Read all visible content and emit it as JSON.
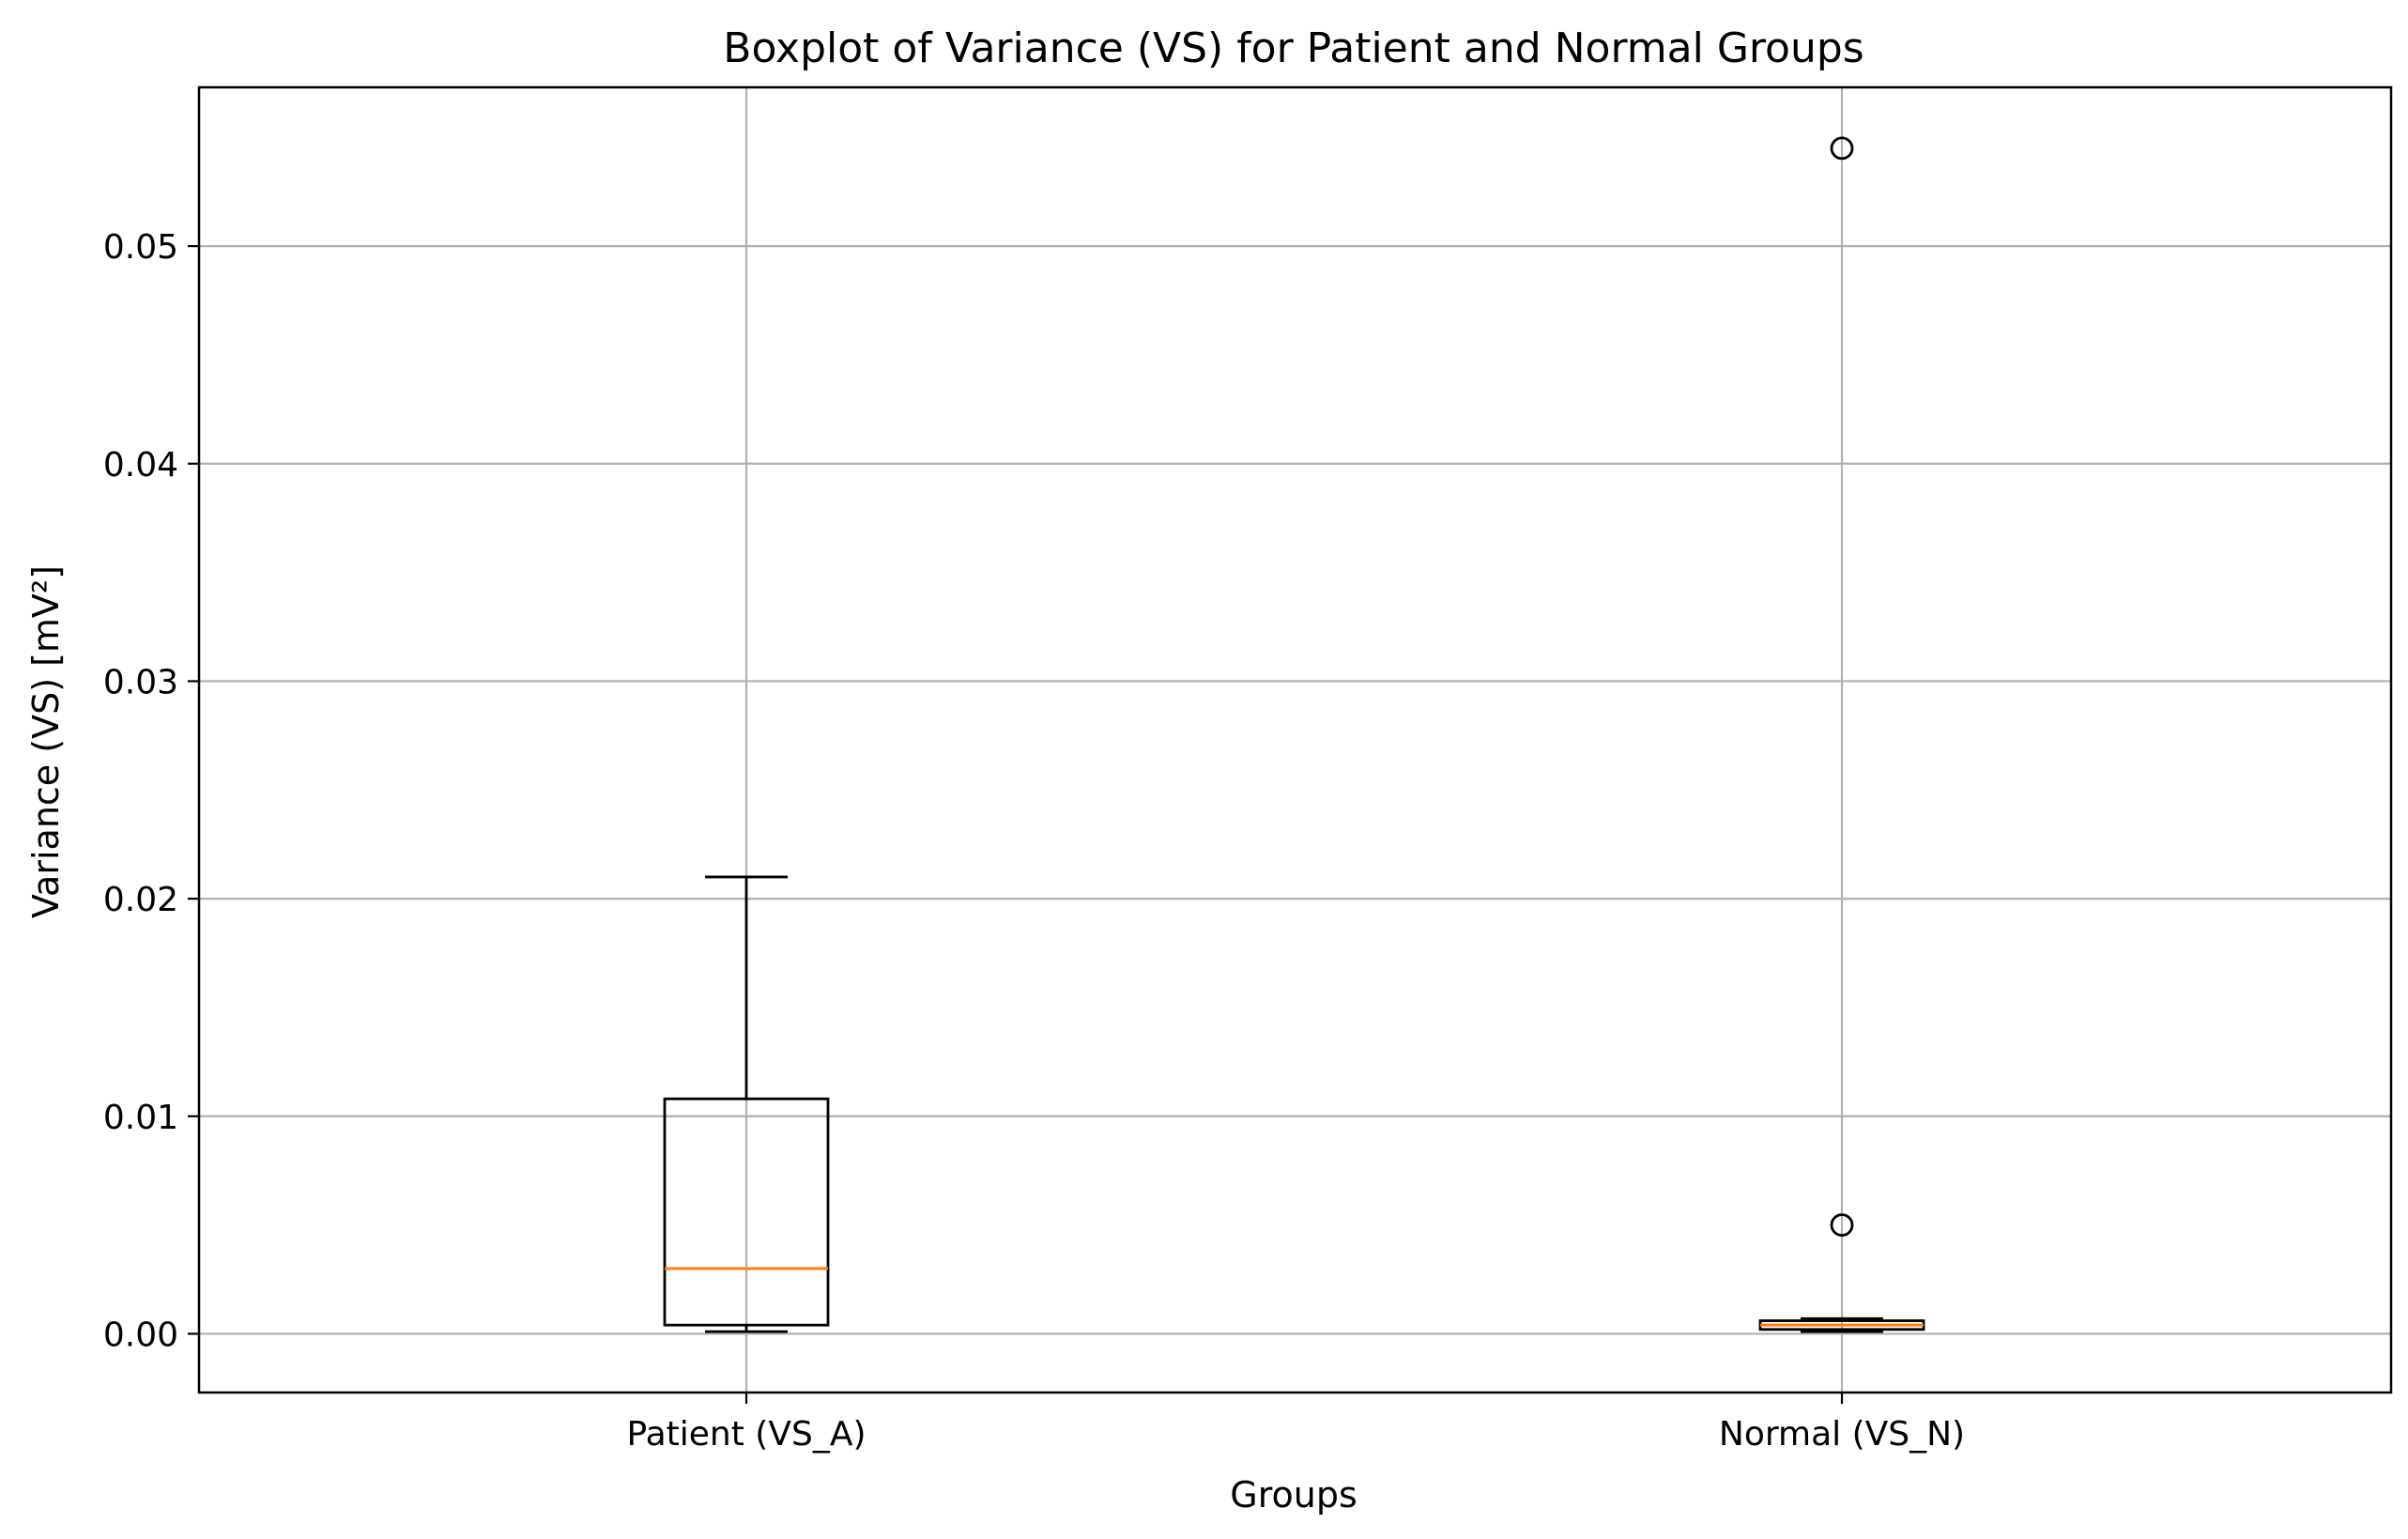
{
  "chart_data": {
    "type": "boxplot",
    "title": "Boxplot of Variance (VS) for Patient and Normal Groups",
    "xlabel": "Groups",
    "ylabel": "Variance (VS) [mV²]",
    "categories": [
      "Patient (VS_A)",
      "Normal (VS_N)"
    ],
    "ylim": [
      -0.0027,
      0.0573
    ],
    "yticks": [
      0.0,
      0.01,
      0.02,
      0.03,
      0.04,
      0.05
    ],
    "ytick_labels": [
      "0.00",
      "0.01",
      "0.02",
      "0.03",
      "0.04",
      "0.05"
    ],
    "grid": true,
    "series": [
      {
        "category": "Patient (VS_A)",
        "whisker_low": 0.0001,
        "q1": 0.0004,
        "median": 0.003,
        "q3": 0.0108,
        "whisker_high": 0.021,
        "outliers": []
      },
      {
        "category": "Normal (VS_N)",
        "whisker_low": 0.0001,
        "q1": 0.0002,
        "median": 0.0004,
        "q3": 0.0006,
        "whisker_high": 0.0007,
        "outliers": [
          0.005,
          0.0545
        ]
      }
    ],
    "colors": {
      "box": "#000000",
      "median": "#ff7f0e",
      "grid": "#b0b0b0"
    }
  }
}
